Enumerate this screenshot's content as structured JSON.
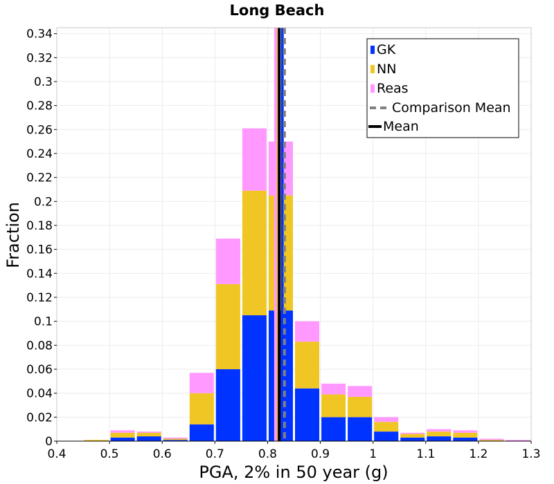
{
  "chart_data": {
    "type": "bar",
    "stacked": true,
    "title": "Long Beach",
    "xlabel": "PGA, 2% in 50 year (g)",
    "ylabel": "Fraction",
    "xlim": [
      0.4,
      1.3
    ],
    "ylim": [
      0,
      0.345
    ],
    "grid": true,
    "legend_position": "top-right",
    "bin_centers": [
      0.475,
      0.525,
      0.575,
      0.625,
      0.675,
      0.725,
      0.775,
      0.825,
      0.875,
      0.925,
      0.975,
      1.025,
      1.075,
      1.125,
      1.175,
      1.225,
      1.275
    ],
    "bin_width": 0.05,
    "series": [
      {
        "name": "GK",
        "color": "#0033ff",
        "values": [
          0.0,
          0.003,
          0.004,
          0.001,
          0.014,
          0.06,
          0.105,
          0.109,
          0.044,
          0.02,
          0.02,
          0.008,
          0.003,
          0.004,
          0.003,
          0.0,
          0.0
        ]
      },
      {
        "name": "NN",
        "color": "#f0c624",
        "values": [
          0.001,
          0.004,
          0.003,
          0.001,
          0.026,
          0.071,
          0.104,
          0.096,
          0.039,
          0.019,
          0.017,
          0.008,
          0.003,
          0.004,
          0.004,
          0.001,
          0.0
        ]
      },
      {
        "name": "Reas",
        "color": "#ff99ff",
        "values": [
          0.0,
          0.002,
          0.001,
          0.001,
          0.017,
          0.038,
          0.052,
          0.045,
          0.017,
          0.009,
          0.009,
          0.004,
          0.001,
          0.002,
          0.002,
          0.001,
          0.001
        ]
      }
    ],
    "lines": [
      {
        "name": "Comparison Mean",
        "style": "dashed",
        "color": "#808080",
        "x": 0.832
      },
      {
        "name": "Mean",
        "style": "solid",
        "color": "#000000",
        "x": 0.822
      }
    ],
    "series_mean_lines": [
      {
        "series": "GK",
        "x": 0.828
      },
      {
        "series": "NN",
        "x": 0.817
      },
      {
        "series": "Reas",
        "x": 0.815
      }
    ],
    "x_ticks": [
      "0.4",
      "0.5",
      "0.6",
      "0.7",
      "0.8",
      "0.9",
      "1",
      "1.1",
      "1.2",
      "1.3"
    ],
    "y_ticks": [
      "0",
      "0.02",
      "0.04",
      "0.06",
      "0.08",
      "0.1",
      "0.12",
      "0.14",
      "0.16",
      "0.18",
      "0.2",
      "0.22",
      "0.24",
      "0.26",
      "0.28",
      "0.3",
      "0.32",
      "0.34"
    ]
  }
}
